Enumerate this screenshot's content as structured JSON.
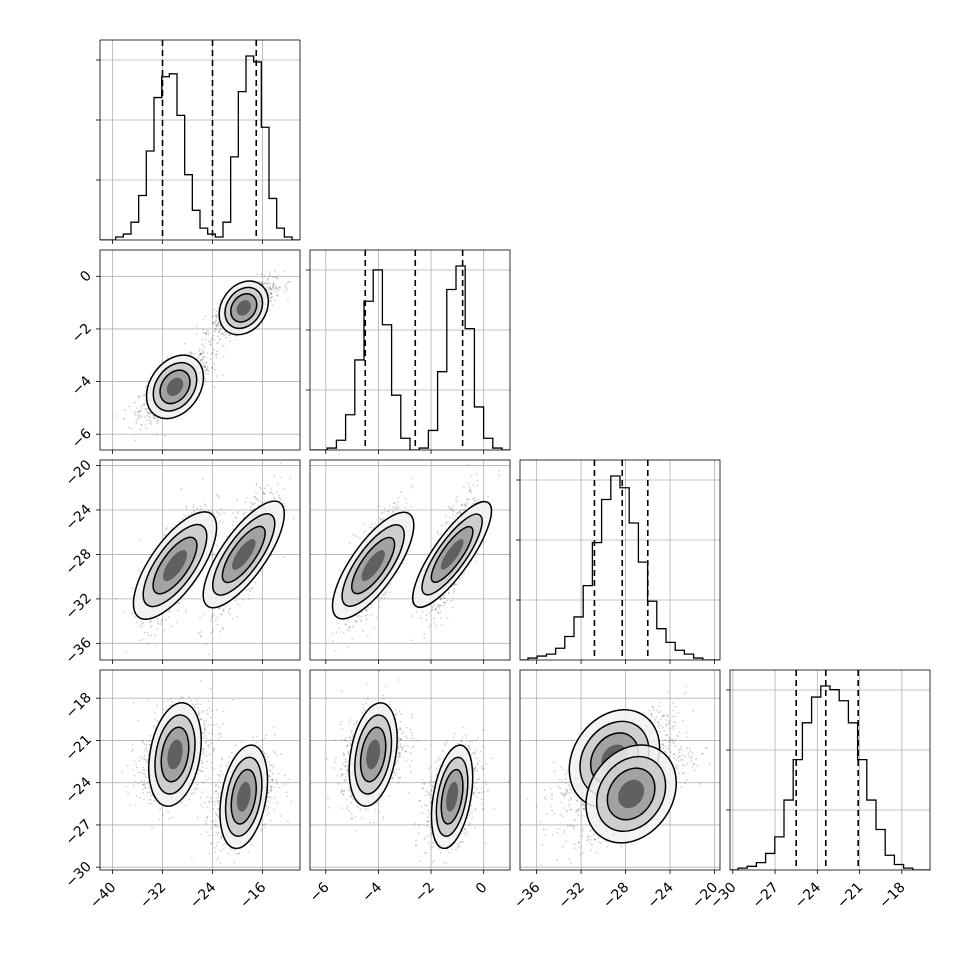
{
  "chart_data": {
    "type": "corner",
    "grid": true,
    "parameters": [
      {
        "range": [
          -42,
          -10
        ],
        "ticks": [
          -40,
          -32,
          -24,
          -16
        ],
        "tick_labels": [
          "−40",
          "−32",
          "−24",
          "−16"
        ],
        "modes": [
          -30,
          -19
        ],
        "sds": [
          2.8,
          2.5
        ],
        "weights": [
          0.46,
          0.54
        ],
        "quantile_lines": [
          -32.0,
          -24.0,
          -17.0
        ]
      },
      {
        "range": [
          -6.6,
          1.0
        ],
        "ticks": [
          -6,
          -4,
          -2,
          0
        ],
        "tick_labels": [
          "−6",
          "−4",
          "−2",
          "0"
        ],
        "modes": [
          -4.2,
          -1.2
        ],
        "sds": [
          0.6,
          0.5
        ],
        "weights": [
          0.47,
          0.53
        ],
        "quantile_lines": [
          -4.5,
          -2.6,
          -0.8
        ]
      },
      {
        "range": [
          -37.5,
          -19.5
        ],
        "ticks": [
          -36,
          -32,
          -28,
          -24,
          -20
        ],
        "tick_labels": [
          "−36",
          "−32",
          "−28",
          "−24",
          "−20"
        ],
        "modes": [
          -28.5
        ],
        "sds": [
          2.6
        ],
        "weights": [
          1.0
        ],
        "quantile_lines": [
          -30.8,
          -28.3,
          -26.0
        ]
      },
      {
        "range": [
          -30.2,
          -16.0
        ],
        "ticks": [
          -30,
          -27,
          -24,
          -21,
          -18
        ],
        "tick_labels": [
          "−30",
          "−27",
          "−24",
          "−21",
          "−18"
        ],
        "modes": [
          -22.5,
          -24.5
        ],
        "sds": [
          1.7,
          1.7
        ],
        "weights": [
          0.5,
          0.5
        ],
        "quantile_lines": [
          -25.5,
          -23.4,
          -21.1
        ]
      }
    ],
    "pair_modes": [
      {
        "x": 1,
        "y": 2,
        "clusters": [
          [
            -30,
            -4.2
          ],
          [
            -19,
            -1.2
          ]
        ]
      },
      {
        "x": 1,
        "y": 3,
        "clusters": [
          [
            -30,
            -29
          ],
          [
            -19,
            -28
          ]
        ]
      },
      {
        "x": 2,
        "y": 3,
        "clusters": [
          [
            -4.2,
            -29
          ],
          [
            -1.2,
            -28
          ]
        ]
      },
      {
        "x": 1,
        "y": 4,
        "clusters": [
          [
            -30,
            -22
          ],
          [
            -19,
            -25
          ]
        ]
      },
      {
        "x": 2,
        "y": 4,
        "clusters": [
          [
            -4.2,
            -22
          ],
          [
            -1.2,
            -25
          ]
        ]
      },
      {
        "x": 3,
        "y": 4,
        "clusters": [
          [
            -29,
            -22.3
          ],
          [
            -27.5,
            -24.8
          ]
        ]
      }
    ],
    "histogram_counts": [
      [
        0,
        1,
        2,
        6,
        15,
        30,
        48,
        55,
        56,
        42,
        22,
        10,
        4,
        2,
        1,
        6,
        28,
        50,
        62,
        60,
        38,
        14,
        4,
        1
      ],
      [
        0,
        1,
        5,
        18,
        46,
        76,
        92,
        64,
        28,
        6,
        0,
        1,
        10,
        40,
        82,
        94,
        62,
        22,
        6,
        1
      ],
      [
        1,
        2,
        3,
        6,
        12,
        22,
        38,
        60,
        82,
        94,
        88,
        70,
        50,
        30,
        16,
        9,
        5,
        3,
        1,
        0
      ],
      [
        1,
        2,
        4,
        9,
        18,
        38,
        60,
        80,
        94,
        100,
        98,
        92,
        80,
        60,
        38,
        22,
        8,
        3,
        1,
        0
      ]
    ]
  }
}
